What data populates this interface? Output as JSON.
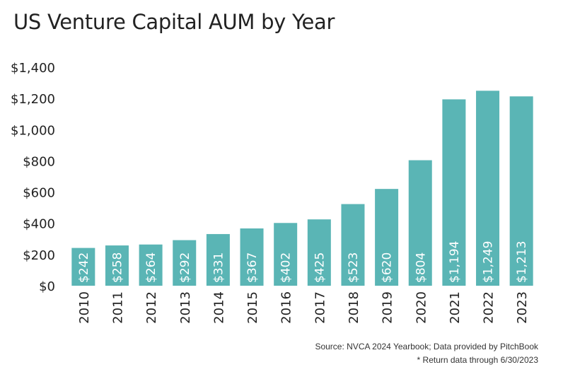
{
  "chart_data": {
    "type": "bar",
    "title": "US Venture Capital AUM by Year",
    "categories": [
      "2010",
      "2011",
      "2012",
      "2013",
      "2014",
      "2015",
      "2016",
      "2017",
      "2018",
      "2019",
      "2020",
      "2021",
      "2022",
      "2023"
    ],
    "values": [
      242,
      258,
      264,
      292,
      331,
      367,
      402,
      425,
      523,
      620,
      804,
      1194,
      1249,
      1213
    ],
    "data_labels": [
      "$242",
      "$258",
      "$264",
      "$292",
      "$331",
      "$367",
      "$402",
      "$425",
      "$523",
      "$620",
      "$804",
      "$1,194",
      "$1,249",
      "$1,213"
    ],
    "ylim": [
      0,
      1400
    ],
    "yticks": [
      0,
      200,
      400,
      600,
      800,
      1000,
      1200,
      1400
    ],
    "ytick_labels": [
      "$0",
      "$200",
      "$400",
      "$600",
      "$800",
      "$1,000",
      "$1,200",
      "$1,400"
    ],
    "grid": false,
    "bar_color": "#5ab5b5",
    "notes": [
      "Source: NVCA 2024 Yearbook; Data provided by PitchBook",
      "* Return data through 6/30/2023"
    ]
  }
}
